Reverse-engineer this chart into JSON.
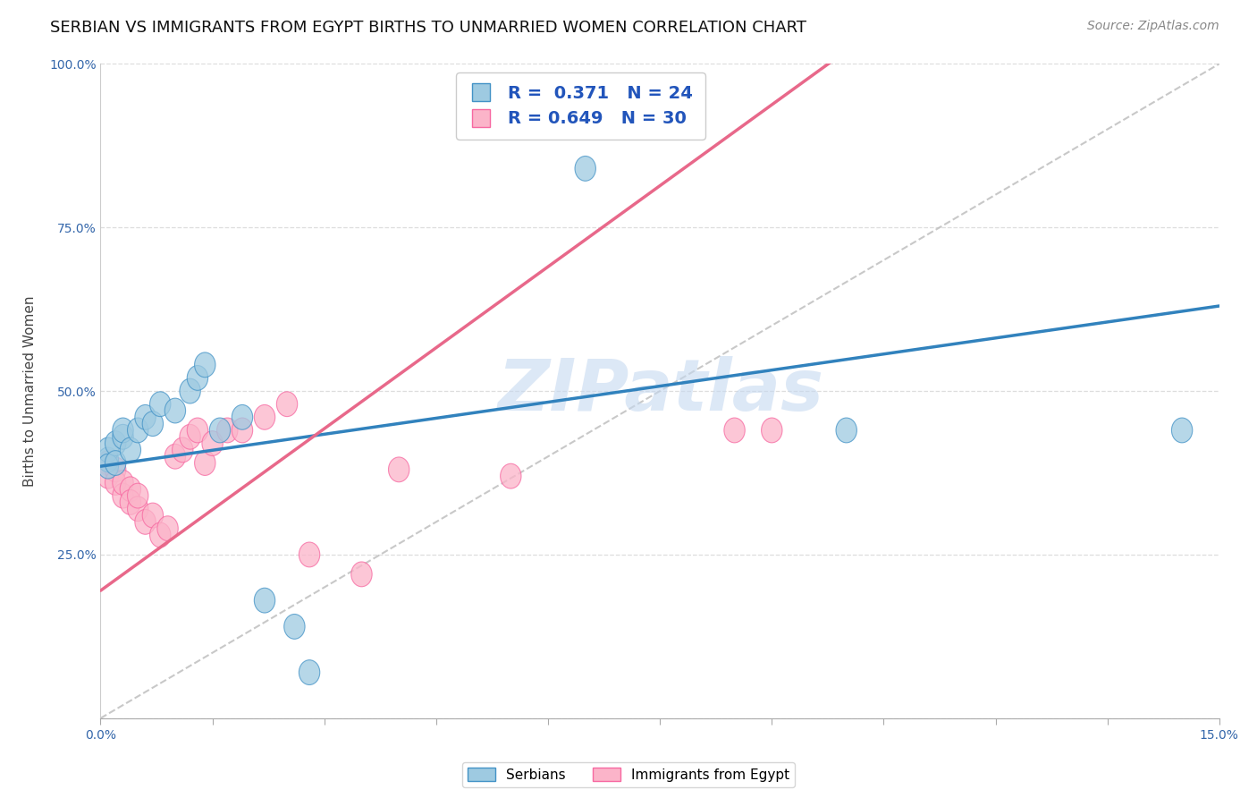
{
  "title": "SERBIAN VS IMMIGRANTS FROM EGYPT BIRTHS TO UNMARRIED WOMEN CORRELATION CHART",
  "source_text": "Source: ZipAtlas.com",
  "ylabel": "Births to Unmarried Women",
  "xlim": [
    0.0,
    0.15
  ],
  "ylim": [
    0.0,
    1.0
  ],
  "xticks": [
    0.0,
    0.015,
    0.03,
    0.045,
    0.06,
    0.075,
    0.09,
    0.105,
    0.12,
    0.135,
    0.15
  ],
  "xtick_labels": [
    "0.0%",
    "",
    "",
    "",
    "",
    "",
    "",
    "",
    "",
    "",
    "15.0%"
  ],
  "yticks": [
    0.25,
    0.5,
    0.75,
    1.0
  ],
  "ytick_labels": [
    "25.0%",
    "50.0%",
    "75.0%",
    "100.0%"
  ],
  "serbian_color": "#9ecae1",
  "serbian_color_edge": "#4292c6",
  "egypt_color": "#fbb4c9",
  "egypt_color_edge": "#f768a1",
  "serbian_R": 0.371,
  "serbian_N": 24,
  "egypt_R": 0.649,
  "egypt_N": 30,
  "watermark": "ZIPatlas",
  "watermark_color": "#c6d9f0",
  "serbian_line_color": "#3182bd",
  "egypt_line_color": "#e8688a",
  "ref_line_color": "#bbbbbb",
  "background_color": "#ffffff",
  "grid_color": "#dddddd",
  "title_fontsize": 13,
  "axis_label_fontsize": 11,
  "tick_fontsize": 10,
  "legend_fontsize": 14,
  "serbian_x": [
    0.001,
    0.001,
    0.001,
    0.002,
    0.002,
    0.003,
    0.003,
    0.004,
    0.005,
    0.006,
    0.007,
    0.008,
    0.01,
    0.012,
    0.013,
    0.014,
    0.016,
    0.019,
    0.022,
    0.026,
    0.028,
    0.065,
    0.1,
    0.145
  ],
  "serbian_y": [
    0.395,
    0.41,
    0.385,
    0.42,
    0.39,
    0.43,
    0.44,
    0.41,
    0.44,
    0.46,
    0.45,
    0.48,
    0.47,
    0.5,
    0.52,
    0.54,
    0.44,
    0.46,
    0.18,
    0.14,
    0.07,
    0.84,
    0.44,
    0.44
  ],
  "egypt_x": [
    0.001,
    0.001,
    0.002,
    0.002,
    0.003,
    0.003,
    0.004,
    0.004,
    0.005,
    0.005,
    0.006,
    0.007,
    0.008,
    0.009,
    0.01,
    0.011,
    0.012,
    0.013,
    0.014,
    0.015,
    0.017,
    0.019,
    0.022,
    0.025,
    0.028,
    0.035,
    0.04,
    0.055,
    0.085,
    0.09
  ],
  "egypt_y": [
    0.39,
    0.37,
    0.38,
    0.36,
    0.34,
    0.36,
    0.35,
    0.33,
    0.32,
    0.34,
    0.3,
    0.31,
    0.28,
    0.29,
    0.4,
    0.41,
    0.43,
    0.44,
    0.39,
    0.42,
    0.44,
    0.44,
    0.46,
    0.48,
    0.25,
    0.22,
    0.38,
    0.37,
    0.44,
    0.44
  ]
}
